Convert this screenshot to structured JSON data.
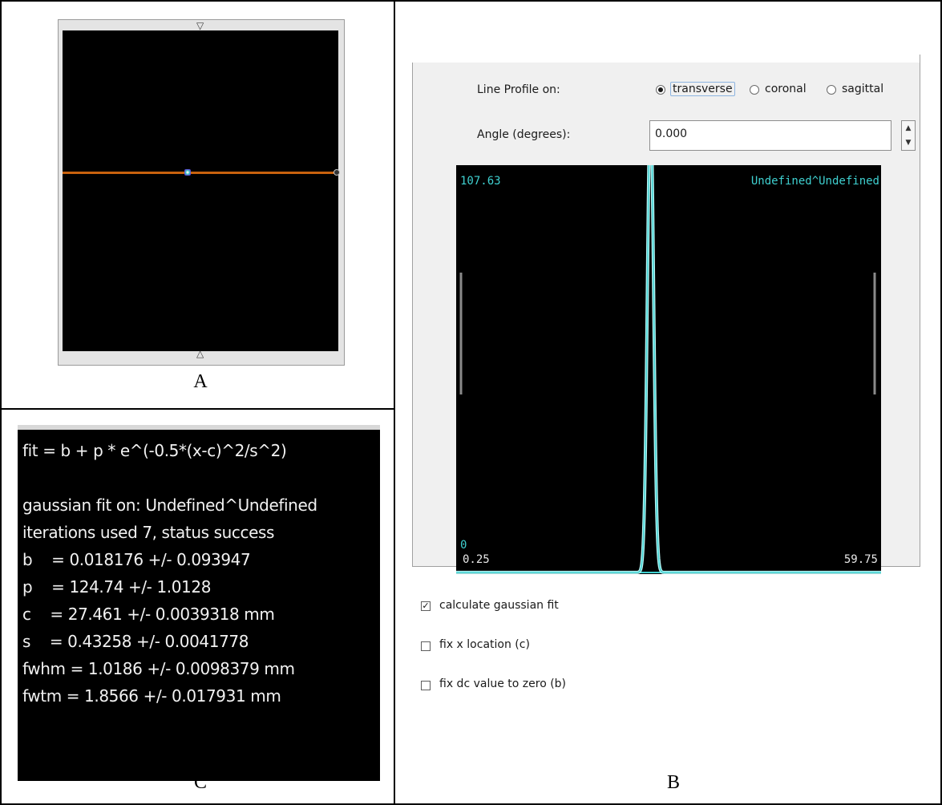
{
  "captions": {
    "a": "A",
    "b": "B",
    "c": "C"
  },
  "panel_a": {
    "top_marker": "▽",
    "bottom_marker": "△"
  },
  "line_profile": {
    "label": "Line Profile on:",
    "options": [
      {
        "label": "transverse",
        "selected": true
      },
      {
        "label": "coronal",
        "selected": false
      },
      {
        "label": "sagittal",
        "selected": false
      }
    ],
    "angle_label": "Angle (degrees):",
    "angle_value": "0.000",
    "plot": {
      "y_max_label": "107.63",
      "y_min_label": "0",
      "x_min_label": "0.25",
      "x_max_label": "59.75",
      "series_label": "Undefined^Undefined"
    },
    "checkboxes": [
      {
        "label": "calculate gaussian fit",
        "checked": true,
        "glyph": "✓"
      },
      {
        "label": "fix x location (c)",
        "checked": false,
        "glyph": ""
      },
      {
        "label": "fix dc value to zero (b)",
        "checked": false,
        "glyph": ""
      }
    ]
  },
  "chart_data": {
    "type": "line",
    "x_range": [
      0.25,
      59.75
    ],
    "y_range": [
      0,
      107.63
    ],
    "fit": {
      "b": 0.018176,
      "p": 124.74,
      "c": 27.461,
      "s": 0.43258
    }
  },
  "fit_results": {
    "lines": [
      "fit = b + p * e^(-0.5*(x-c)^2/s^2)",
      "",
      "gaussian fit on: Undefined^Undefined",
      "iterations used 7, status success",
      "b    = 0.018176 +/- 0.093947",
      "p    = 124.74 +/- 1.0128",
      "c    = 27.461 +/- 0.0039318 mm",
      "s    = 0.43258 +/- 0.0041778",
      "fwhm = 1.0186 +/- 0.0098379 mm",
      "fwtm = 1.8566 +/- 0.017931 mm"
    ]
  }
}
